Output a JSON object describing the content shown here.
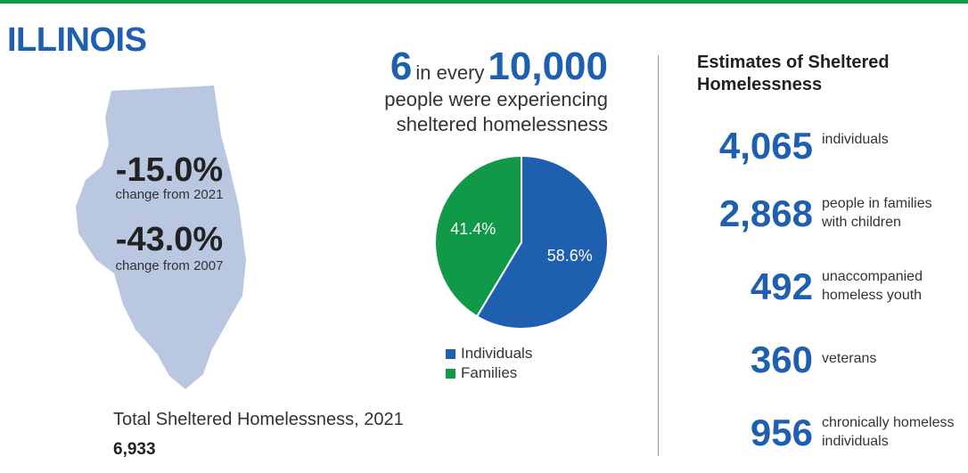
{
  "state": "ILLINOIS",
  "change": [
    {
      "value": "-15.0%",
      "label": "change from 2021"
    },
    {
      "value": "-43.0%",
      "label": "change from 2007"
    }
  ],
  "total": {
    "label": "Total Sheltered Homelessness, 2021",
    "value": "6,933"
  },
  "rate": {
    "number": "6",
    "middle": "in every",
    "per": "10,000",
    "line1": "people were experiencing",
    "line2": "sheltered homelessness"
  },
  "chart_data": {
    "type": "pie",
    "categories": [
      "Individuals",
      "Families"
    ],
    "values": [
      58.6,
      41.4
    ],
    "labels": [
      "58.6%",
      "41.4%"
    ],
    "colors": [
      "#1f5fb0",
      "#109a48"
    ],
    "legend_position": "bottom"
  },
  "estimates": {
    "title": "Estimates of Sheltered Homelessness",
    "items": [
      {
        "value": "4,065",
        "label": "individuals"
      },
      {
        "value": "2,868",
        "label": "people in families\nwith children"
      },
      {
        "value": "492",
        "label": "unaccompanied\nhomeless youth"
      },
      {
        "value": "360",
        "label": "veterans"
      },
      {
        "value": "956",
        "label": "chronically homeless\nindividuals"
      }
    ]
  },
  "colors": {
    "accent_blue": "#1f5fb0",
    "accent_green": "#109a48",
    "map_fill": "#b9c7e0"
  }
}
